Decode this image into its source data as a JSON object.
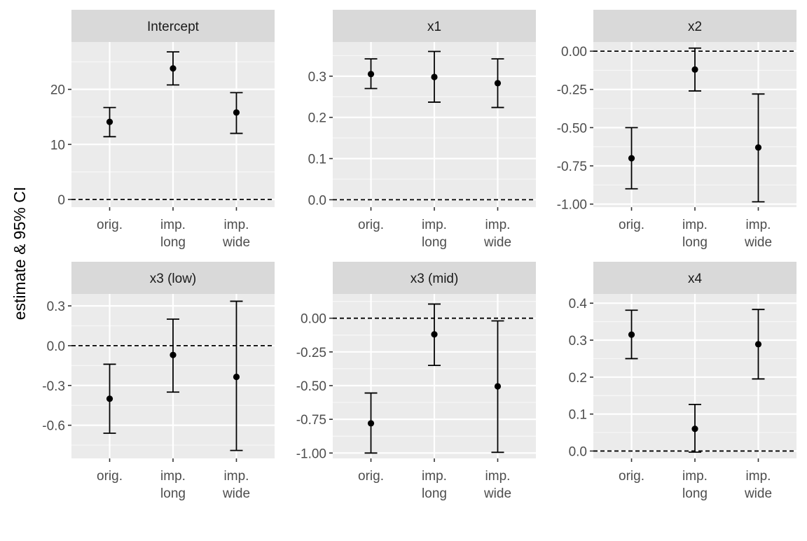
{
  "figure": {
    "ylabel": "estimate & 95% CI"
  },
  "chart_data": [
    {
      "type": "errorbar",
      "title": "Intercept",
      "categories": [
        "orig.",
        "imp.\nlong",
        "imp.\nwide"
      ],
      "estimate": [
        14.1,
        23.8,
        15.8
      ],
      "lower": [
        11.4,
        20.8,
        12.0
      ],
      "upper": [
        16.7,
        26.8,
        19.4
      ],
      "ylim": [
        -1.4,
        28.6
      ],
      "yticks": [
        0,
        10,
        20
      ],
      "ytick_labels": [
        "0",
        "10",
        "20"
      ],
      "reference_line": 0
    },
    {
      "type": "errorbar",
      "title": "x1",
      "categories": [
        "orig.",
        "imp.\nlong",
        "imp.\nwide"
      ],
      "estimate": [
        0.305,
        0.298,
        0.283
      ],
      "lower": [
        0.27,
        0.237,
        0.224
      ],
      "upper": [
        0.342,
        0.36,
        0.342
      ],
      "ylim": [
        -0.018,
        0.383
      ],
      "yticks": [
        0.0,
        0.1,
        0.2,
        0.3
      ],
      "ytick_labels": [
        "0.0",
        "0.1",
        "0.2",
        "0.3"
      ],
      "reference_line": 0
    },
    {
      "type": "errorbar",
      "title": "x2",
      "categories": [
        "orig.",
        "imp.\nlong",
        "imp.\nwide"
      ],
      "estimate": [
        -0.7,
        -0.12,
        -0.63
      ],
      "lower": [
        -0.9,
        -0.26,
        -0.985
      ],
      "upper": [
        -0.5,
        0.02,
        -0.28
      ],
      "ylim": [
        -1.02,
        0.06
      ],
      "yticks": [
        0.0,
        -0.25,
        -0.5,
        -0.75,
        -1.0
      ],
      "ytick_labels": [
        "0.00",
        "-0.25",
        "-0.50",
        "-0.75",
        "-1.00"
      ],
      "reference_line": 0
    },
    {
      "type": "errorbar",
      "title": "x3 (low)",
      "categories": [
        "orig.",
        "imp.\nlong",
        "imp.\nwide"
      ],
      "estimate": [
        -0.4,
        -0.07,
        -0.235
      ],
      "lower": [
        -0.66,
        -0.35,
        -0.79
      ],
      "upper": [
        -0.14,
        0.2,
        0.335
      ],
      "ylim": [
        -0.85,
        0.39
      ],
      "yticks": [
        0.3,
        0.0,
        -0.3,
        -0.6
      ],
      "ytick_labels": [
        "0.3",
        "0.0",
        "-0.3",
        "-0.6"
      ],
      "reference_line": 0
    },
    {
      "type": "errorbar",
      "title": "x3 (mid)",
      "categories": [
        "orig.",
        "imp.\nlong",
        "imp.\nwide"
      ],
      "estimate": [
        -0.78,
        -0.12,
        -0.505
      ],
      "lower": [
        -1.0,
        -0.35,
        -0.995
      ],
      "upper": [
        -0.555,
        0.105,
        -0.02
      ],
      "ylim": [
        -1.04,
        0.18
      ],
      "yticks": [
        0.0,
        -0.25,
        -0.5,
        -0.75,
        -1.0
      ],
      "ytick_labels": [
        "0.00",
        "-0.25",
        "-0.50",
        "-0.75",
        "-1.00"
      ],
      "reference_line": 0
    },
    {
      "type": "errorbar",
      "title": "x4",
      "categories": [
        "orig.",
        "imp.\nlong",
        "imp.\nwide"
      ],
      "estimate": [
        0.315,
        0.06,
        0.289
      ],
      "lower": [
        0.25,
        -0.003,
        0.195
      ],
      "upper": [
        0.381,
        0.126,
        0.383
      ],
      "ylim": [
        -0.02,
        0.425
      ],
      "yticks": [
        0.0,
        0.1,
        0.2,
        0.3,
        0.4
      ],
      "ytick_labels": [
        "0.0",
        "0.1",
        "0.2",
        "0.3",
        "0.4"
      ],
      "reference_line": 0
    }
  ]
}
